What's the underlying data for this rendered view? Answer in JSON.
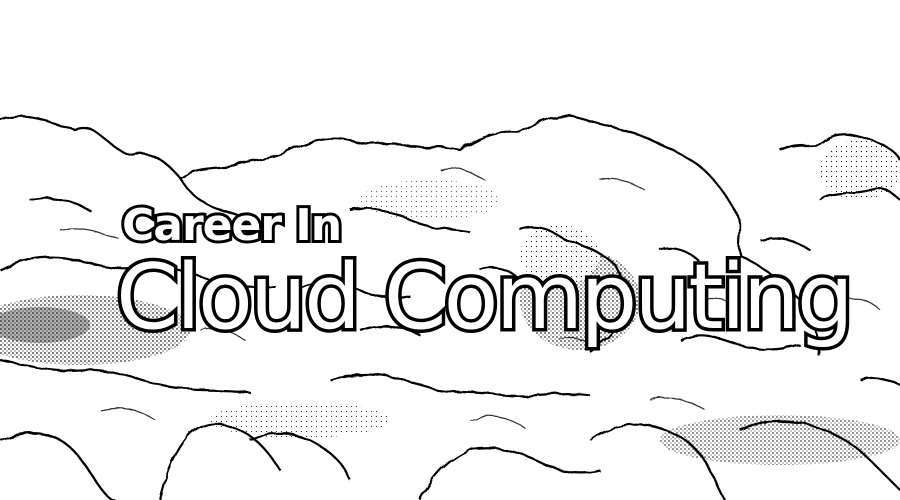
{
  "image": {
    "subject": "line-art-clouds",
    "colors": {
      "background": "#ffffff",
      "ink": "#000000",
      "shade": "#555555"
    }
  },
  "title": {
    "line1": "Career In",
    "line2": "Cloud Computing"
  }
}
